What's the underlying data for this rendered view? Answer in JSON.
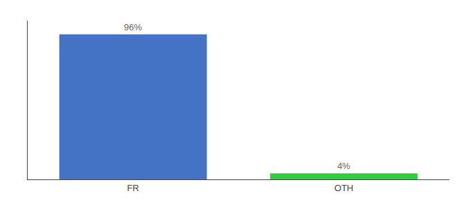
{
  "chart_data": {
    "type": "bar",
    "categories": [
      "FR",
      "OTH"
    ],
    "values": [
      96,
      4
    ],
    "value_labels": [
      "96%",
      "4%"
    ],
    "colors": [
      "#4472c4",
      "#2ecc40"
    ],
    "ylim": [
      0,
      105
    ],
    "grid": false,
    "data_labels": true,
    "tick_labels": "x"
  }
}
